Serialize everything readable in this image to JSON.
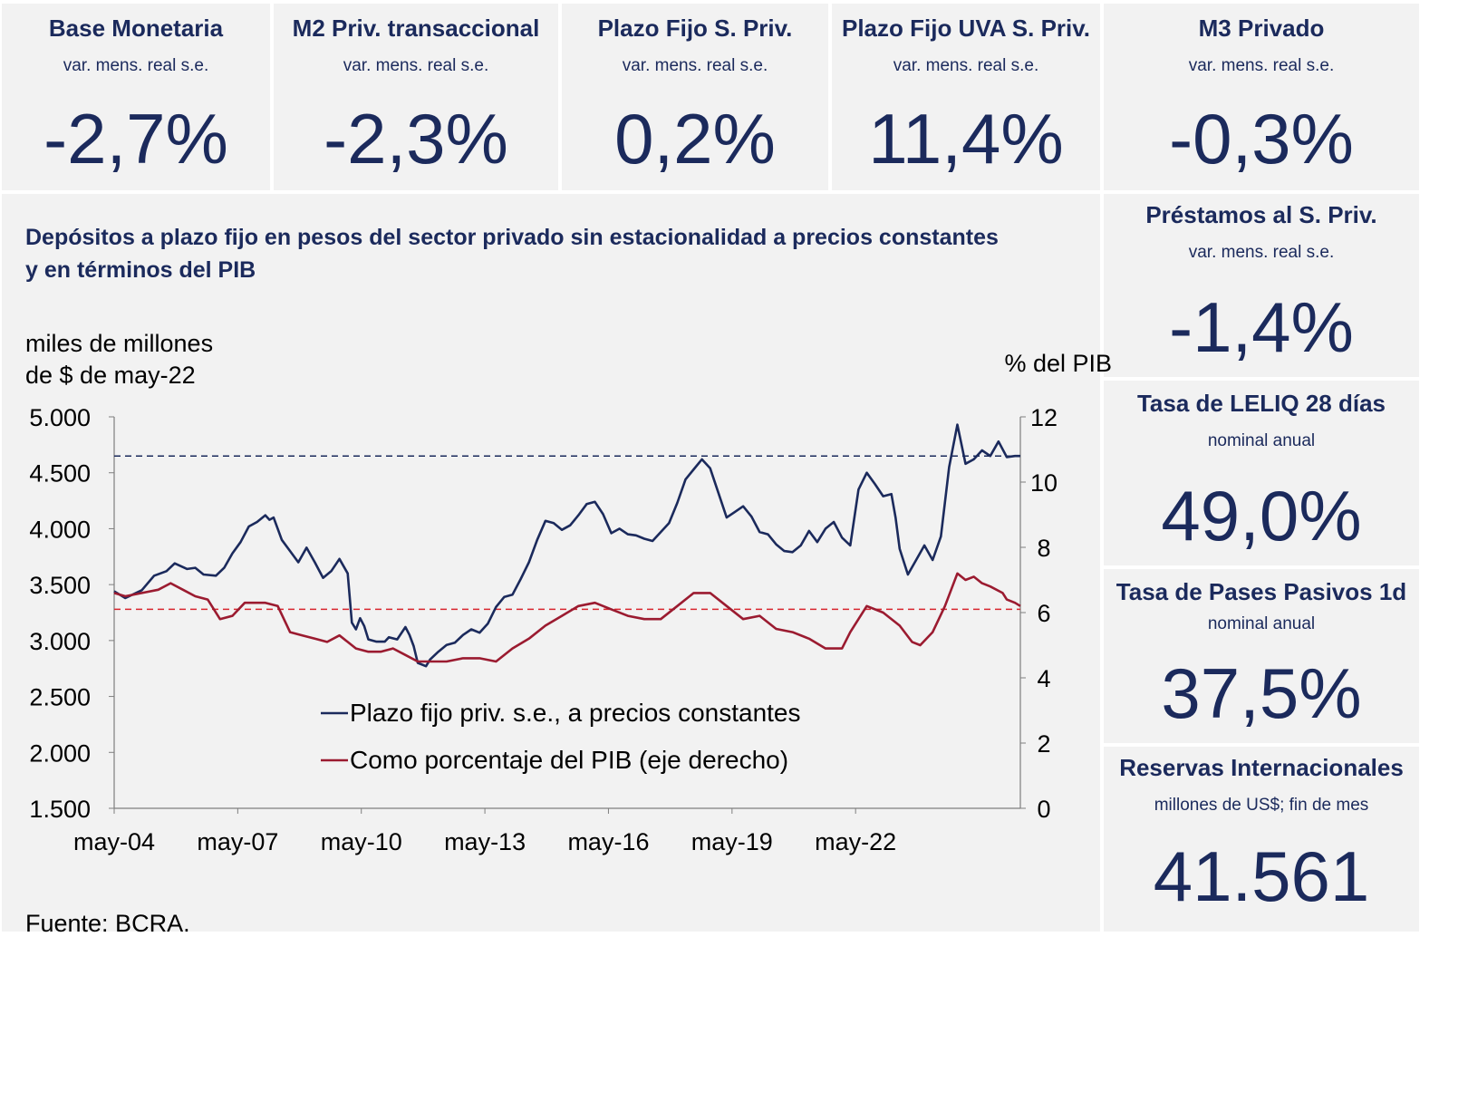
{
  "kpis": {
    "base_monetaria": {
      "title": "Base Monetaria",
      "subtitle": "var. mens. real s.e.",
      "value": "-2,7%"
    },
    "m2": {
      "title": "M2 Priv. transaccional",
      "subtitle": "var. mens. real s.e.",
      "value": "-2,3%"
    },
    "plazo_fijo": {
      "title": "Plazo Fijo S. Priv.",
      "subtitle": "var. mens. real s.e.",
      "value": "0,2%"
    },
    "plazo_fijo_uva": {
      "title": "Plazo Fijo UVA S. Priv.",
      "subtitle": "var. mens. real s.e.",
      "value": "11,4%"
    },
    "m3": {
      "title": "M3 Privado",
      "subtitle": "var. mens. real s.e.",
      "value": "-0,3%"
    },
    "prestamos": {
      "title": "Préstamos al S. Priv.",
      "subtitle": "var. mens. real s.e.",
      "value": "-1,4%"
    },
    "leliq": {
      "title": "Tasa de LELIQ 28 días",
      "subtitle": "nominal anual",
      "value": "49,0%"
    },
    "pases": {
      "title": "Tasa de Pases Pasivos 1d",
      "subtitle": "nominal anual",
      "value": "37,5%"
    },
    "reservas": {
      "title": "Reservas Internacionales",
      "subtitle": "millones de US$; fin de mes",
      "value": "41.561"
    }
  },
  "chart": {
    "title_line1": "Depósitos a plazo fijo en pesos del sector privado sin estacionalidad a precios constantes",
    "title_line2": "y en términos del PIB",
    "unit_left_line1": "miles de millones",
    "unit_left_line2": "de $ de may-22",
    "unit_right": "% del PIB",
    "source": "Fuente: BCRA."
  },
  "colors": {
    "navy": "#1b2a5c",
    "red": "#9b1b30",
    "panel": "#f2f2f2"
  },
  "chart_data": {
    "type": "line",
    "title": "Depósitos a plazo fijo en pesos del sector privado sin estacionalidad a precios constantes y en términos del PIB",
    "x_range": [
      "may-04",
      "may-22"
    ],
    "x_ticks": [
      "may-04",
      "may-07",
      "may-10",
      "may-13",
      "may-16",
      "may-19",
      "may-22"
    ],
    "ylabel_left": "miles de millones de $ de may-22",
    "ylabel_right": "% del PIB",
    "ylim_left": [
      1500,
      5000
    ],
    "yticks_left": [
      "1.500",
      "2.000",
      "2.500",
      "3.000",
      "3.500",
      "4.000",
      "4.500",
      "5.000"
    ],
    "ylim_right": [
      0,
      12
    ],
    "yticks_right": [
      "0",
      "2",
      "4",
      "6",
      "8",
      "10",
      "12"
    ],
    "grid": false,
    "legend_position": "bottom-center",
    "reference_lines": [
      {
        "axis": "left",
        "value": 4650,
        "color": "#1b2a5c",
        "style": "dashed"
      },
      {
        "axis": "right",
        "value": 6.1,
        "color": "#d9262e",
        "style": "dashed"
      }
    ],
    "series": [
      {
        "name": "Plazo fijo priv. s.e., a precios constantes",
        "axis": "left",
        "color": "#1b2a5c",
        "points": [
          [
            2004.33,
            3440
          ],
          [
            2004.6,
            3380
          ],
          [
            2005.0,
            3450
          ],
          [
            2005.3,
            3580
          ],
          [
            2005.6,
            3620
          ],
          [
            2005.8,
            3690
          ],
          [
            2006.1,
            3640
          ],
          [
            2006.3,
            3650
          ],
          [
            2006.5,
            3590
          ],
          [
            2006.8,
            3580
          ],
          [
            2007.0,
            3650
          ],
          [
            2007.2,
            3780
          ],
          [
            2007.4,
            3880
          ],
          [
            2007.6,
            4020
          ],
          [
            2007.8,
            4060
          ],
          [
            2008.0,
            4120
          ],
          [
            2008.1,
            4080
          ],
          [
            2008.2,
            4100
          ],
          [
            2008.4,
            3900
          ],
          [
            2008.6,
            3800
          ],
          [
            2008.8,
            3700
          ],
          [
            2009.0,
            3830
          ],
          [
            2009.2,
            3700
          ],
          [
            2009.4,
            3560
          ],
          [
            2009.6,
            3620
          ],
          [
            2009.8,
            3730
          ],
          [
            2010.0,
            3600
          ],
          [
            2010.1,
            3160
          ],
          [
            2010.2,
            3100
          ],
          [
            2010.3,
            3200
          ],
          [
            2010.4,
            3130
          ],
          [
            2010.5,
            3010
          ],
          [
            2010.7,
            2990
          ],
          [
            2010.9,
            2990
          ],
          [
            2011.0,
            3030
          ],
          [
            2011.2,
            3010
          ],
          [
            2011.4,
            3120
          ],
          [
            2011.5,
            3050
          ],
          [
            2011.6,
            2950
          ],
          [
            2011.7,
            2800
          ],
          [
            2011.9,
            2770
          ],
          [
            2012.0,
            2830
          ],
          [
            2012.2,
            2900
          ],
          [
            2012.4,
            2960
          ],
          [
            2012.6,
            2980
          ],
          [
            2012.8,
            3050
          ],
          [
            2013.0,
            3100
          ],
          [
            2013.2,
            3070
          ],
          [
            2013.4,
            3150
          ],
          [
            2013.6,
            3300
          ],
          [
            2013.8,
            3390
          ],
          [
            2014.0,
            3410
          ],
          [
            2014.2,
            3550
          ],
          [
            2014.4,
            3700
          ],
          [
            2014.6,
            3900
          ],
          [
            2014.8,
            4070
          ],
          [
            2015.0,
            4050
          ],
          [
            2015.2,
            3990
          ],
          [
            2015.4,
            4030
          ],
          [
            2015.6,
            4120
          ],
          [
            2015.8,
            4220
          ],
          [
            2016.0,
            4240
          ],
          [
            2016.2,
            4130
          ],
          [
            2016.4,
            3960
          ],
          [
            2016.6,
            4000
          ],
          [
            2016.8,
            3950
          ],
          [
            2017.0,
            3940
          ],
          [
            2017.2,
            3910
          ],
          [
            2017.4,
            3890
          ],
          [
            2017.6,
            3970
          ],
          [
            2017.8,
            4050
          ],
          [
            2018.0,
            4230
          ],
          [
            2018.2,
            4440
          ],
          [
            2018.4,
            4530
          ],
          [
            2018.6,
            4620
          ],
          [
            2018.8,
            4540
          ],
          [
            2019.0,
            4320
          ],
          [
            2019.2,
            4100
          ],
          [
            2019.4,
            4150
          ],
          [
            2019.6,
            4200
          ],
          [
            2019.8,
            4110
          ],
          [
            2020.0,
            3970
          ],
          [
            2020.2,
            3950
          ],
          [
            2020.4,
            3860
          ],
          [
            2020.6,
            3800
          ],
          [
            2020.8,
            3790
          ],
          [
            2021.0,
            3850
          ],
          [
            2021.2,
            3980
          ],
          [
            2021.4,
            3880
          ],
          [
            2021.6,
            4000
          ],
          [
            2021.8,
            4060
          ],
          [
            2022.0,
            3920
          ],
          [
            2022.2,
            3850
          ],
          [
            2022.4,
            4350
          ],
          [
            2022.6,
            4500
          ],
          [
            2022.8,
            4400
          ],
          [
            2023.0,
            4290
          ],
          [
            2023.2,
            4310
          ],
          [
            2023.3,
            4100
          ],
          [
            2023.4,
            3820
          ],
          [
            2023.6,
            3590
          ],
          [
            2023.8,
            3720
          ],
          [
            2024.0,
            3850
          ],
          [
            2024.2,
            3720
          ],
          [
            2024.4,
            3930
          ],
          [
            2024.6,
            4550
          ],
          [
            2024.8,
            4930
          ],
          [
            2025.0,
            4580
          ],
          [
            2025.2,
            4620
          ],
          [
            2025.4,
            4700
          ],
          [
            2025.6,
            4650
          ],
          [
            2025.8,
            4780
          ],
          [
            2026.0,
            4640
          ],
          [
            2026.2,
            4650
          ],
          [
            2026.33,
            4650
          ]
        ]
      },
      {
        "name": "Como porcentaje del PIB (eje derecho)",
        "axis": "right",
        "color": "#9b1b30",
        "points": [
          [
            2004.33,
            6.6
          ],
          [
            2004.6,
            6.5
          ],
          [
            2005.0,
            6.6
          ],
          [
            2005.4,
            6.7
          ],
          [
            2005.7,
            6.9
          ],
          [
            2006.0,
            6.7
          ],
          [
            2006.3,
            6.5
          ],
          [
            2006.6,
            6.4
          ],
          [
            2006.9,
            5.8
          ],
          [
            2007.2,
            5.9
          ],
          [
            2007.5,
            6.3
          ],
          [
            2007.8,
            6.3
          ],
          [
            2008.0,
            6.3
          ],
          [
            2008.3,
            6.2
          ],
          [
            2008.6,
            5.4
          ],
          [
            2008.9,
            5.3
          ],
          [
            2009.2,
            5.2
          ],
          [
            2009.5,
            5.1
          ],
          [
            2009.8,
            5.3
          ],
          [
            2010.0,
            5.1
          ],
          [
            2010.2,
            4.9
          ],
          [
            2010.5,
            4.8
          ],
          [
            2010.8,
            4.8
          ],
          [
            2011.1,
            4.9
          ],
          [
            2011.4,
            4.7
          ],
          [
            2011.7,
            4.5
          ],
          [
            2012.0,
            4.5
          ],
          [
            2012.4,
            4.5
          ],
          [
            2012.8,
            4.6
          ],
          [
            2013.2,
            4.6
          ],
          [
            2013.6,
            4.5
          ],
          [
            2014.0,
            4.9
          ],
          [
            2014.4,
            5.2
          ],
          [
            2014.8,
            5.6
          ],
          [
            2015.2,
            5.9
          ],
          [
            2015.6,
            6.2
          ],
          [
            2016.0,
            6.3
          ],
          [
            2016.4,
            6.1
          ],
          [
            2016.8,
            5.9
          ],
          [
            2017.2,
            5.8
          ],
          [
            2017.6,
            5.8
          ],
          [
            2018.0,
            6.2
          ],
          [
            2018.4,
            6.6
          ],
          [
            2018.8,
            6.6
          ],
          [
            2019.2,
            6.2
          ],
          [
            2019.6,
            5.8
          ],
          [
            2020.0,
            5.9
          ],
          [
            2020.4,
            5.5
          ],
          [
            2020.8,
            5.4
          ],
          [
            2021.2,
            5.2
          ],
          [
            2021.6,
            4.9
          ],
          [
            2022.0,
            4.9
          ],
          [
            2022.2,
            5.4
          ],
          [
            2022.6,
            6.2
          ],
          [
            2023.0,
            6.0
          ],
          [
            2023.4,
            5.6
          ],
          [
            2023.7,
            5.1
          ],
          [
            2023.9,
            5.0
          ],
          [
            2024.2,
            5.4
          ],
          [
            2024.5,
            6.2
          ],
          [
            2024.8,
            7.2
          ],
          [
            2025.0,
            7.0
          ],
          [
            2025.2,
            7.1
          ],
          [
            2025.4,
            6.9
          ],
          [
            2025.6,
            6.8
          ],
          [
            2025.9,
            6.6
          ],
          [
            2026.0,
            6.4
          ],
          [
            2026.2,
            6.3
          ],
          [
            2026.33,
            6.2
          ]
        ]
      }
    ]
  }
}
